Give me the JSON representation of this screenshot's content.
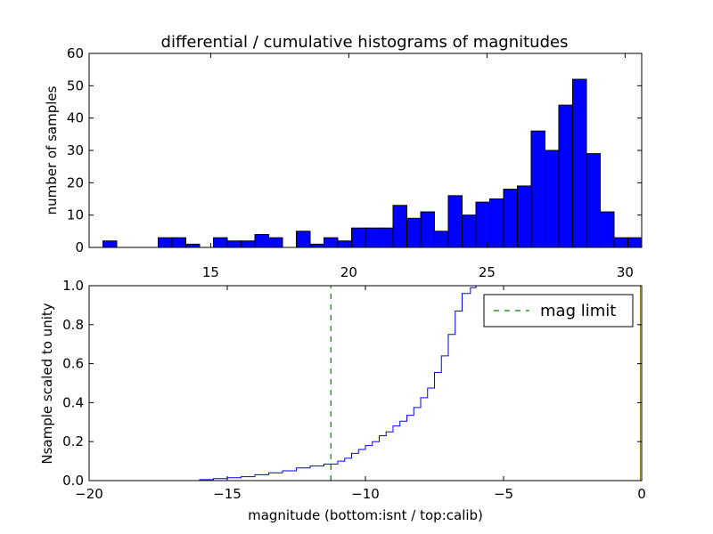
{
  "figure": {
    "background": "#ffffff"
  },
  "chart_data": [
    {
      "type": "bar",
      "title": "differential / cumulative histograms of magnitudes",
      "xlabel": "",
      "ylabel": "number of samples",
      "xlim": [
        10.6,
        30.6
      ],
      "ylim": [
        0,
        60
      ],
      "xticks": [
        15,
        20,
        25,
        30
      ],
      "yticks": [
        0,
        10,
        20,
        30,
        40,
        50,
        60
      ],
      "xtick_position": "bottom",
      "bin_width": 0.5,
      "bar_color": "#0000ff",
      "edge_color": "#000000",
      "grid": false,
      "bins_start": [
        11.1,
        11.6,
        12.1,
        12.6,
        13.1,
        13.6,
        14.1,
        14.6,
        15.1,
        15.6,
        16.1,
        16.6,
        17.1,
        17.6,
        18.1,
        18.6,
        19.1,
        19.6,
        20.1,
        20.6,
        21.1,
        21.6,
        22.1,
        22.6,
        23.1,
        23.6,
        24.1,
        24.6,
        25.1,
        25.6,
        26.1,
        26.6,
        27.1,
        27.6,
        28.1,
        28.6,
        29.1,
        29.6,
        30.1
      ],
      "values": [
        2,
        0,
        0,
        0,
        3,
        3,
        1,
        0,
        3,
        2,
        2,
        4,
        3,
        0,
        5,
        1,
        3,
        2,
        6,
        6,
        6,
        13,
        9,
        11,
        5,
        16,
        10,
        14,
        15,
        18,
        19,
        36,
        30,
        44,
        52,
        29,
        11,
        3,
        3
      ]
    },
    {
      "type": "line",
      "title": "",
      "xlabel": "magnitude (bottom:isnt / top:calib)",
      "ylabel": "Nsample scaled to unity",
      "xlim": [
        -20,
        0
      ],
      "ylim": [
        0,
        1
      ],
      "xticks": [
        -20,
        -15,
        -10,
        -5,
        0
      ],
      "yticks": [
        0.0,
        0.2,
        0.4,
        0.6,
        0.8,
        1.0
      ],
      "grid": false,
      "legend_position": "top-right",
      "series": [
        {
          "style": "step",
          "color": "#0000ff",
          "x": [
            -20,
            -16.0,
            -15.5,
            -15.0,
            -14.5,
            -14.0,
            -13.5,
            -13.0,
            -12.5,
            -12.0,
            -11.5,
            -11.0,
            -10.75,
            -10.5,
            -10.25,
            -10.0,
            -9.75,
            -9.5,
            -9.25,
            -9.0,
            -8.75,
            -8.5,
            -8.25,
            -8.0,
            -7.75,
            -7.5,
            -7.25,
            -7.0,
            -6.75,
            -6.5,
            -6.2,
            -6.0
          ],
          "y": [
            0,
            0.005,
            0.01,
            0.015,
            0.02,
            0.03,
            0.04,
            0.05,
            0.065,
            0.075,
            0.085,
            0.1,
            0.115,
            0.14,
            0.16,
            0.18,
            0.2,
            0.23,
            0.25,
            0.28,
            0.305,
            0.335,
            0.375,
            0.425,
            0.475,
            0.555,
            0.64,
            0.75,
            0.87,
            0.96,
            0.99,
            1.0
          ]
        },
        {
          "name": "mag limit",
          "style": "dashed-vertical",
          "color": "#008000",
          "x": [
            -11.25,
            -11.25
          ],
          "y": [
            0,
            1
          ]
        }
      ]
    }
  ]
}
